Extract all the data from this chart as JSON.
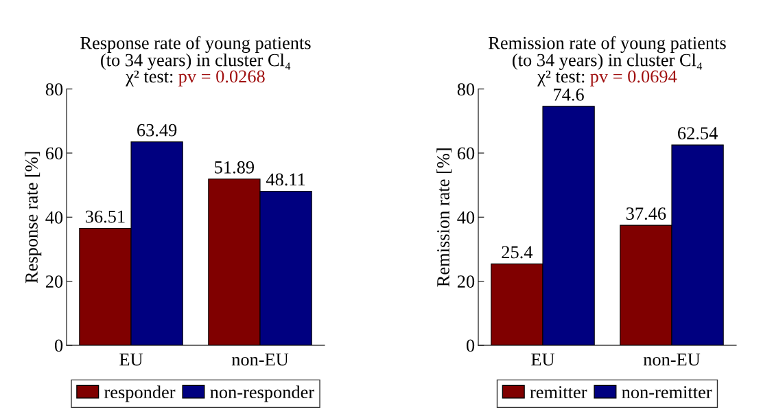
{
  "chart_data": [
    {
      "type": "bar",
      "title": "Response rate of young patients\n(to 34 years) in cluster Cl₄",
      "subtitle": "χ² test:",
      "annotations": [
        "pv = 0.0268"
      ],
      "ylabel": "Response rate [%]",
      "categories": [
        "EU",
        "non-EU"
      ],
      "series": [
        {
          "name": "responder",
          "color": "#800000",
          "values": [
            36.51,
            51.89
          ]
        },
        {
          "name": "non-responder",
          "color": "#000080",
          "values": [
            63.49,
            48.11
          ]
        }
      ],
      "ylim": [
        0,
        80
      ],
      "yticks": [
        0,
        20,
        40,
        60,
        80
      ],
      "data_labels": true,
      "legend": "bottom",
      "grid": false
    },
    {
      "type": "bar",
      "title": "Remission rate of young patients\n(to 34 years) in cluster Cl₄",
      "subtitle": "χ² test:",
      "annotations": [
        "pv = 0.0694"
      ],
      "ylabel": "Remission rate [%]",
      "categories": [
        "EU",
        "non-EU"
      ],
      "series": [
        {
          "name": "remitter",
          "color": "#800000",
          "values": [
            25.4,
            37.46
          ]
        },
        {
          "name": "non-remitter",
          "color": "#000080",
          "values": [
            74.6,
            62.54
          ]
        }
      ],
      "ylim": [
        0,
        80
      ],
      "yticks": [
        0,
        20,
        40,
        60,
        80
      ],
      "data_labels": true,
      "legend": "bottom",
      "grid": false
    }
  ]
}
